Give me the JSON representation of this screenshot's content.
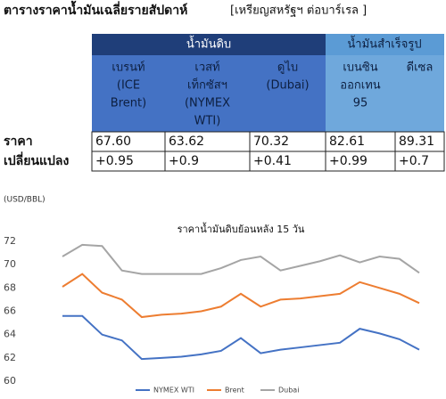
{
  "header": {
    "title": "ตารางราคาน้ำมันเฉลี่ยรายสัปดาห์",
    "unit": "[เหรียญสหรัฐฯ ต่อบาร์เรล ]"
  },
  "table": {
    "groups": [
      "น้ำมันดิบ",
      "น้ำมันสำเร็จรูป"
    ],
    "columns": [
      [
        "เบรนท์",
        "(ICE",
        "Brent)"
      ],
      [
        "เวสท์",
        "เท็กซัสฯ",
        "(NYMEX",
        "WTI)"
      ],
      [
        "ดูไบ",
        "(Dubai)"
      ],
      [
        "เบนซิน",
        "ออกเทน",
        "95"
      ],
      [
        "ดีเซล"
      ]
    ],
    "rows": [
      {
        "label": "ราคา",
        "cells": [
          "67.60",
          "63.62",
          "70.32",
          "82.61",
          "89.31"
        ]
      },
      {
        "label": "เปลี่ยนแปลง",
        "cells": [
          "+0.95",
          "+0.9",
          "+0.41",
          "+0.99",
          "+0.7"
        ]
      }
    ]
  },
  "chart_data": {
    "type": "line",
    "title": "ราคาน้ำมันดิบย้อนหลัง 15 วัน",
    "y_label": "(USD/BBL)",
    "categories": [
      null,
      null,
      null,
      null,
      null,
      null,
      null,
      null,
      null,
      null,
      null,
      null,
      null,
      null,
      null,
      null,
      null,
      null,
      null
    ],
    "series": [
      {
        "name": "NYMEX WTI",
        "color": "#4472c4",
        "values": [
          65.6,
          65.6,
          64.0,
          63.5,
          61.9,
          62.0,
          62.1,
          62.3,
          62.6,
          63.7,
          62.4,
          62.7,
          62.9,
          63.1,
          63.3,
          64.5,
          64.1,
          63.6,
          62.7
        ]
      },
      {
        "name": "Brent",
        "color": "#ed7d31",
        "values": [
          68.1,
          69.2,
          67.6,
          67.0,
          65.5,
          65.7,
          65.8,
          66.0,
          66.4,
          67.5,
          66.4,
          67.0,
          67.1,
          67.3,
          67.5,
          68.5,
          68.0,
          67.5,
          66.7
        ]
      },
      {
        "name": "Dubai",
        "color": "#a5a5a5",
        "values": [
          70.7,
          71.7,
          71.6,
          69.5,
          69.2,
          69.2,
          69.2,
          69.2,
          69.7,
          70.4,
          70.7,
          69.5,
          69.9,
          70.3,
          70.8,
          70.2,
          70.7,
          70.5,
          69.3
        ]
      }
    ],
    "ylim": [
      60,
      72
    ],
    "yticks": [
      60,
      62,
      64,
      66,
      68,
      70,
      72
    ],
    "grid": false,
    "legend": "bottom"
  }
}
